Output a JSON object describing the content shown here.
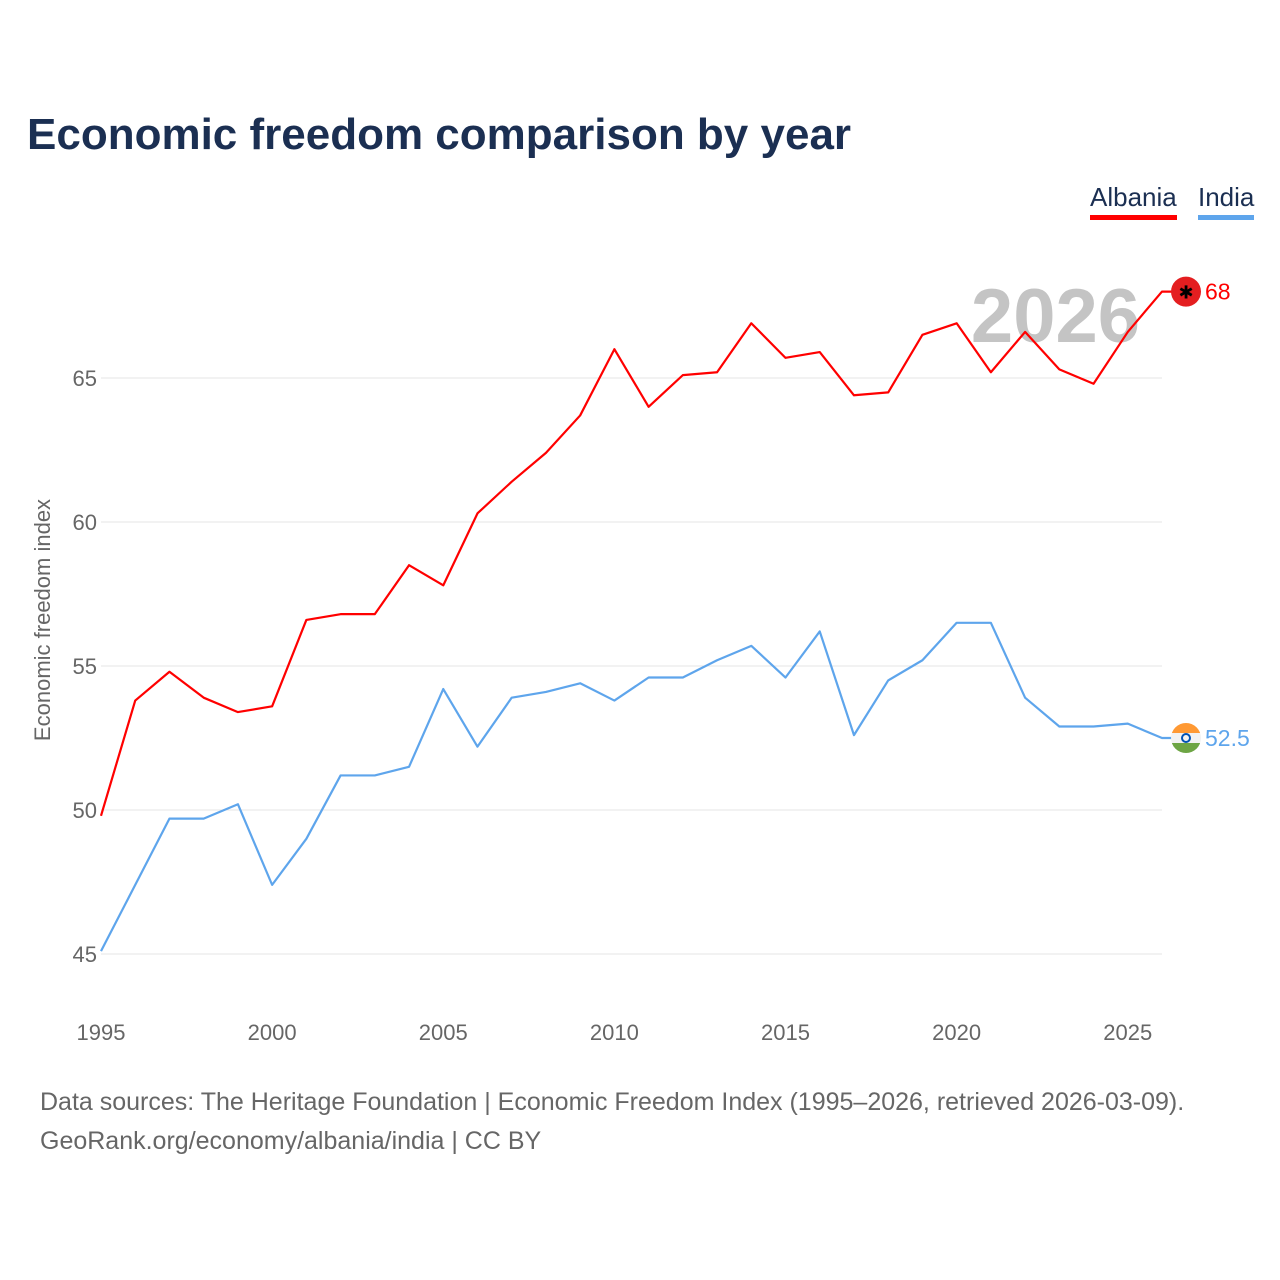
{
  "chart_data": {
    "type": "line",
    "title": "Economic freedom comparison by year",
    "xlabel": "",
    "ylabel": "Economic freedom index",
    "xlim": [
      1995,
      2026
    ],
    "ylim": [
      45,
      68
    ],
    "grid": true,
    "legend_placement": "top-right",
    "x_ticks": [
      1995,
      2000,
      2005,
      2010,
      2015,
      2020,
      2025
    ],
    "y_ticks": [
      45,
      50,
      55,
      60,
      65
    ],
    "year_watermark": "2026",
    "x": [
      1995,
      1996,
      1997,
      1998,
      1999,
      2000,
      2001,
      2002,
      2003,
      2004,
      2005,
      2006,
      2007,
      2008,
      2009,
      2010,
      2011,
      2012,
      2013,
      2014,
      2015,
      2016,
      2017,
      2018,
      2019,
      2020,
      2021,
      2022,
      2023,
      2024,
      2025,
      2026
    ],
    "series": [
      {
        "name": "Albania",
        "color": "#ff0000",
        "end_label": "68",
        "values": [
          49.8,
          53.8,
          54.8,
          53.9,
          53.4,
          53.6,
          56.6,
          56.8,
          56.8,
          58.5,
          57.8,
          60.3,
          61.4,
          62.4,
          63.7,
          66.0,
          64.0,
          65.1,
          65.2,
          66.9,
          65.7,
          65.9,
          64.4,
          64.5,
          66.5,
          66.9,
          65.2,
          66.6,
          65.3,
          64.8,
          66.6,
          68.0
        ]
      },
      {
        "name": "India",
        "color": "#5ea5ec",
        "end_label": "52.5",
        "values": [
          45.1,
          47.4,
          49.7,
          49.7,
          50.2,
          47.4,
          49.0,
          51.2,
          51.2,
          51.5,
          54.2,
          52.2,
          53.9,
          54.1,
          54.4,
          53.8,
          54.6,
          54.6,
          55.2,
          55.7,
          54.6,
          56.2,
          52.6,
          54.5,
          55.2,
          56.5,
          56.5,
          53.9,
          52.9,
          52.9,
          53.0,
          52.5
        ]
      }
    ]
  },
  "footer": {
    "sources": "Data sources: The Heritage Foundation | Economic Freedom Index (1995–2026, retrieved 2026-03-09).",
    "credit": "GeoRank.org/economy/albania/india | CC BY"
  }
}
